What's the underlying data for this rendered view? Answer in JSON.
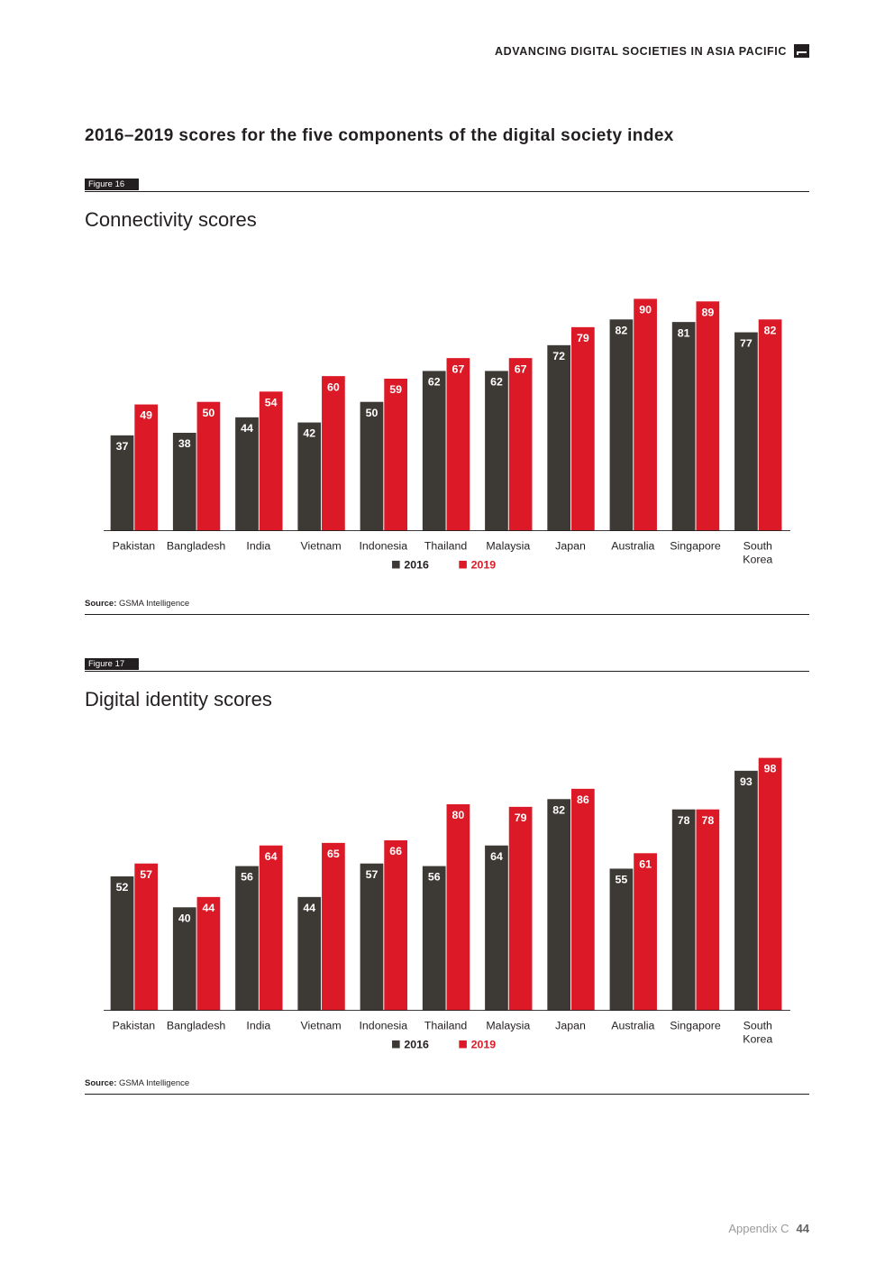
{
  "header": {
    "title": "ADVANCING DIGITAL SOCIETIES IN ASIA PACIFIC"
  },
  "section_title": "2016–2019 scores for the five components of the digital society index",
  "colors": {
    "y2016": "#3d3935",
    "y2019": "#dc1a27",
    "axis": "#231f20"
  },
  "figures": [
    {
      "tag": "Figure 16",
      "title": "Connectivity scores",
      "source_label": "Source:",
      "source_text": "GSMA Intelligence"
    },
    {
      "tag": "Figure 17",
      "title": "Digital identity scores",
      "source_label": "Source:",
      "source_text": "GSMA Intelligence"
    }
  ],
  "chart_data": [
    {
      "type": "bar",
      "title": "Connectivity scores",
      "categories": [
        "Pakistan",
        "Bangladesh",
        "India",
        "Vietnam",
        "Indonesia",
        "Thailand",
        "Malaysia",
        "Japan",
        "Australia",
        "Singapore",
        "South Korea"
      ],
      "series": [
        {
          "name": "2016",
          "values": [
            37,
            38,
            44,
            42,
            50,
            62,
            62,
            72,
            82,
            81,
            77
          ]
        },
        {
          "name": "2019",
          "values": [
            49,
            50,
            54,
            60,
            59,
            67,
            67,
            79,
            90,
            89,
            82
          ]
        }
      ],
      "ylim": [
        0,
        100
      ],
      "legend": "bottom-center",
      "xlabel": "",
      "ylabel": ""
    },
    {
      "type": "bar",
      "title": "Digital identity scores",
      "categories": [
        "Pakistan",
        "Bangladesh",
        "India",
        "Vietnam",
        "Indonesia",
        "Thailand",
        "Malaysia",
        "Japan",
        "Australia",
        "Singapore",
        "South Korea"
      ],
      "series": [
        {
          "name": "2016",
          "values": [
            52,
            40,
            56,
            44,
            57,
            56,
            64,
            82,
            55,
            78,
            93
          ]
        },
        {
          "name": "2019",
          "values": [
            57,
            44,
            64,
            65,
            66,
            80,
            79,
            86,
            61,
            78,
            98
          ]
        }
      ],
      "ylim": [
        0,
        100
      ],
      "legend": "bottom-center",
      "xlabel": "",
      "ylabel": ""
    }
  ],
  "footer": {
    "label": "Appendix C",
    "page": "44"
  }
}
